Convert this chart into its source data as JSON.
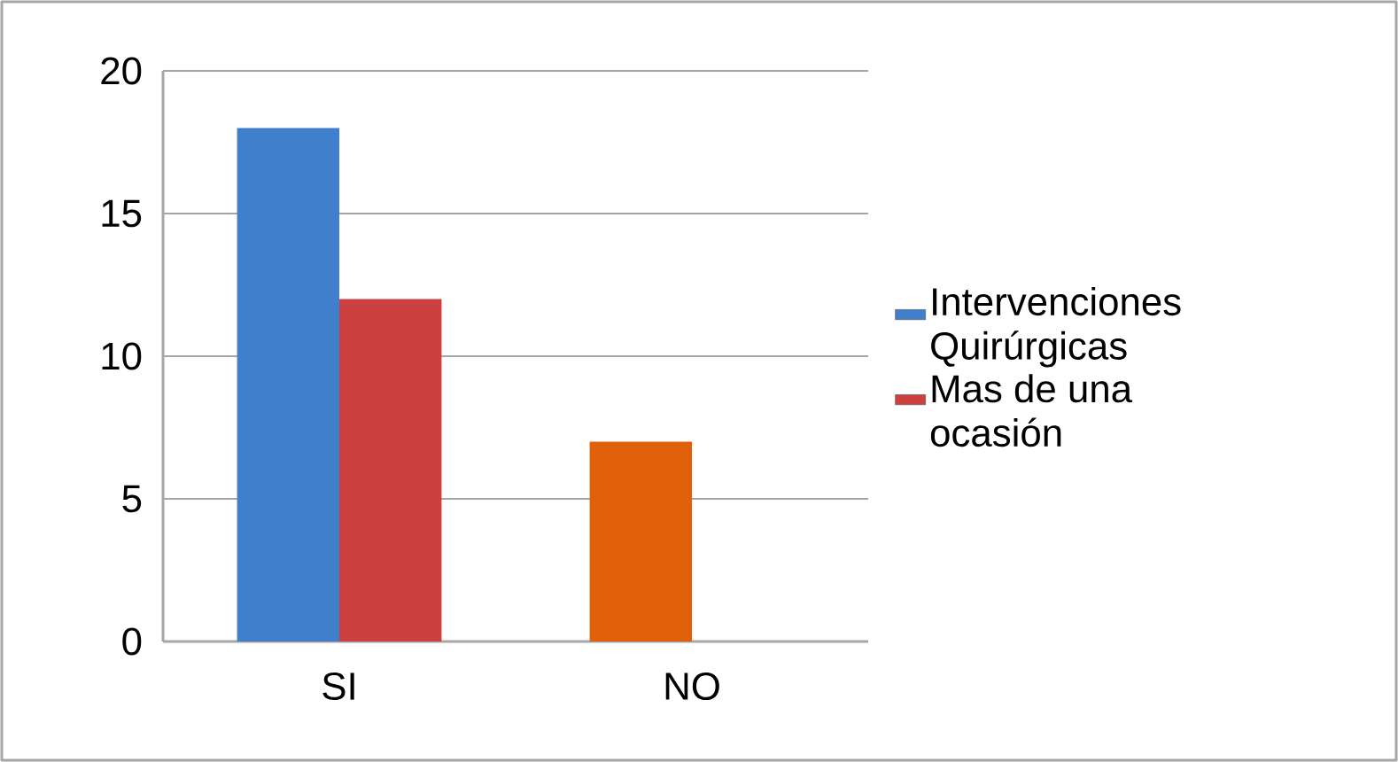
{
  "chart_data": {
    "type": "bar",
    "categories": [
      "SI",
      "NO"
    ],
    "series": [
      {
        "name": "Intervenciones Quirúrgicas",
        "color": "#3f7fcc",
        "colors": [
          "#3f7fcc",
          "#e0600a"
        ],
        "values": [
          18,
          7
        ]
      },
      {
        "name": "Mas de una ocasión",
        "color": "#cc4040",
        "values": [
          12,
          null
        ]
      }
    ],
    "ylim": [
      0,
      20
    ],
    "yticks": [
      0,
      5,
      10,
      15,
      20
    ],
    "grid": "y",
    "legend": "right"
  }
}
